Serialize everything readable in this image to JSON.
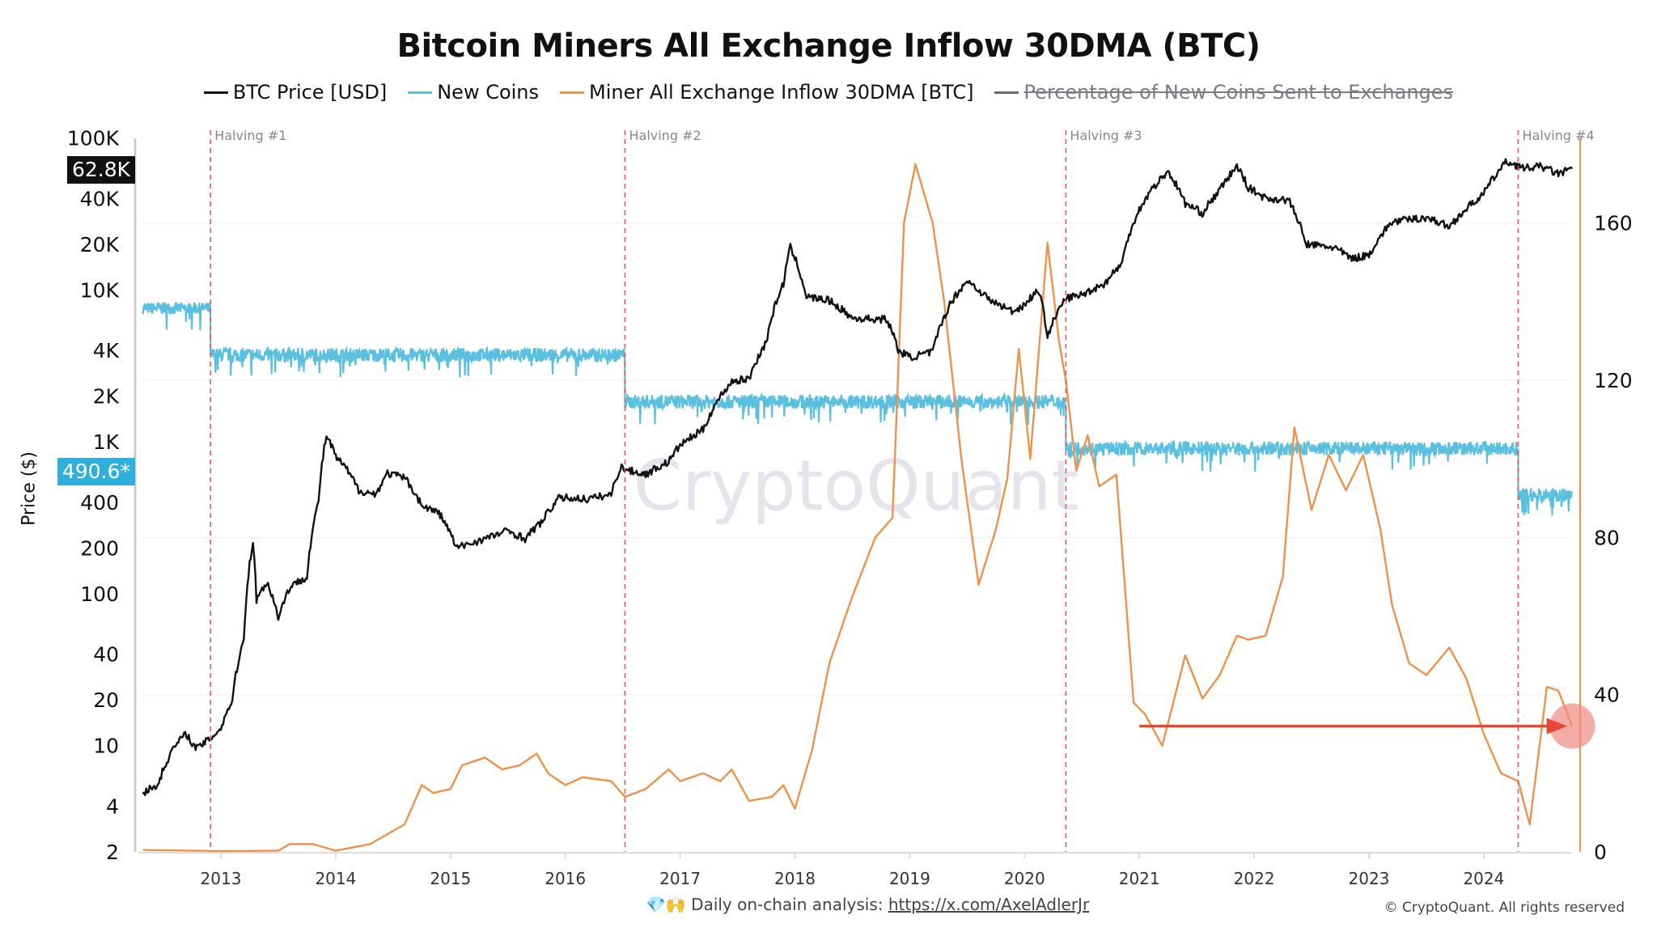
{
  "chart_data": {
    "type": "line",
    "title": "Bitcoin Miners All Exchange Inflow 30DMA (BTC)",
    "legend": [
      {
        "name": "BTC Price [USD]",
        "color": "#111111",
        "enabled": true
      },
      {
        "name": "New Coins",
        "color": "#5bc0e0",
        "enabled": true
      },
      {
        "name": "Miner All Exchange Inflow 30DMA [BTC]",
        "color": "#f0914a",
        "enabled": true
      },
      {
        "name": "Percentage of New Coins Sent to Exchanges",
        "color": "#6b6b75",
        "enabled": false
      }
    ],
    "legend_position": "top",
    "x_ticks": [
      "2013",
      "2014",
      "2015",
      "2016",
      "2017",
      "2018",
      "2019",
      "2020",
      "2021",
      "2022",
      "2023",
      "2024"
    ],
    "x_range": [
      2012.32,
      2024.77
    ],
    "left_axis": {
      "label": "Price ($)",
      "scale": "log",
      "range": [
        2,
        100000
      ],
      "ticks": [
        {
          "v": 100000,
          "t": "100K"
        },
        {
          "v": 40000,
          "t": "40K"
        },
        {
          "v": 20000,
          "t": "20K"
        },
        {
          "v": 10000,
          "t": "10K"
        },
        {
          "v": 4000,
          "t": "4K"
        },
        {
          "v": 2000,
          "t": "2K"
        },
        {
          "v": 1000,
          "t": "1K"
        },
        {
          "v": 400,
          "t": "400"
        },
        {
          "v": 200,
          "t": "200"
        },
        {
          "v": 100,
          "t": "100"
        },
        {
          "v": 40,
          "t": "40"
        },
        {
          "v": 20,
          "t": "20"
        },
        {
          "v": 10,
          "t": "10"
        },
        {
          "v": 4,
          "t": "4"
        },
        {
          "v": 2,
          "t": "2"
        }
      ],
      "current_price_badge": "62.8K",
      "new_coins_badge": "490.6*"
    },
    "right_axis": {
      "scale": "linear",
      "range": [
        0,
        180
      ],
      "ticks": [
        {
          "v": 0,
          "t": "0"
        },
        {
          "v": 40,
          "t": "40"
        },
        {
          "v": 80,
          "t": "80"
        },
        {
          "v": 120,
          "t": "120"
        },
        {
          "v": 160,
          "t": "160"
        }
      ]
    },
    "grid": true,
    "halvings": [
      {
        "label": "Halving #1",
        "date": 2012.91
      },
      {
        "label": "Halving #2",
        "date": 2016.52
      },
      {
        "label": "Halving #3",
        "date": 2020.36
      },
      {
        "label": "Halving #4",
        "date": 2024.3
      }
    ],
    "series": [
      {
        "name": "BTC Price [USD]",
        "axis": "left",
        "color": "#111111",
        "points": [
          [
            2012.32,
            4.9
          ],
          [
            2012.45,
            5.5
          ],
          [
            2012.6,
            10
          ],
          [
            2012.7,
            12
          ],
          [
            2012.78,
            9.5
          ],
          [
            2012.9,
            11
          ],
          [
            2013.0,
            13
          ],
          [
            2013.1,
            20
          ],
          [
            2013.2,
            50
          ],
          [
            2013.28,
            220
          ],
          [
            2013.31,
            90
          ],
          [
            2013.4,
            120
          ],
          [
            2013.5,
            70
          ],
          [
            2013.6,
            110
          ],
          [
            2013.75,
            130
          ],
          [
            2013.85,
            400
          ],
          [
            2013.92,
            1100
          ],
          [
            2014.0,
            800
          ],
          [
            2014.1,
            650
          ],
          [
            2014.2,
            480
          ],
          [
            2014.35,
            450
          ],
          [
            2014.45,
            620
          ],
          [
            2014.6,
            580
          ],
          [
            2014.75,
            380
          ],
          [
            2014.9,
            340
          ],
          [
            2015.0,
            250
          ],
          [
            2015.05,
            200
          ],
          [
            2015.3,
            230
          ],
          [
            2015.5,
            260
          ],
          [
            2015.65,
            230
          ],
          [
            2015.8,
            300
          ],
          [
            2015.95,
            430
          ],
          [
            2016.2,
            420
          ],
          [
            2016.4,
            450
          ],
          [
            2016.48,
            680
          ],
          [
            2016.55,
            650
          ],
          [
            2016.7,
            610
          ],
          [
            2016.9,
            740
          ],
          [
            2017.0,
            950
          ],
          [
            2017.2,
            1200
          ],
          [
            2017.45,
            2500
          ],
          [
            2017.6,
            2600
          ],
          [
            2017.75,
            4500
          ],
          [
            2017.9,
            11000
          ],
          [
            2017.96,
            19000
          ],
          [
            2018.1,
            9000
          ],
          [
            2018.3,
            8500
          ],
          [
            2018.5,
            6500
          ],
          [
            2018.8,
            6400
          ],
          [
            2018.9,
            4000
          ],
          [
            2019.0,
            3600
          ],
          [
            2019.2,
            3900
          ],
          [
            2019.35,
            8000
          ],
          [
            2019.5,
            11500
          ],
          [
            2019.7,
            8500
          ],
          [
            2019.9,
            7200
          ],
          [
            2020.0,
            8000
          ],
          [
            2020.12,
            10000
          ],
          [
            2020.2,
            5000
          ],
          [
            2020.36,
            8800
          ],
          [
            2020.5,
            9300
          ],
          [
            2020.7,
            11000
          ],
          [
            2020.85,
            15000
          ],
          [
            2020.95,
            28000
          ],
          [
            2021.1,
            45000
          ],
          [
            2021.25,
            60000
          ],
          [
            2021.4,
            37000
          ],
          [
            2021.55,
            32000
          ],
          [
            2021.7,
            45000
          ],
          [
            2021.85,
            65000
          ],
          [
            2021.95,
            47000
          ],
          [
            2022.1,
            40000
          ],
          [
            2022.3,
            39000
          ],
          [
            2022.45,
            20000
          ],
          [
            2022.7,
            19000
          ],
          [
            2022.85,
            16000
          ],
          [
            2023.0,
            17000
          ],
          [
            2023.2,
            28000
          ],
          [
            2023.5,
            30000
          ],
          [
            2023.7,
            26000
          ],
          [
            2023.9,
            37000
          ],
          [
            2024.0,
            43000
          ],
          [
            2024.2,
            70000
          ],
          [
            2024.35,
            63000
          ],
          [
            2024.5,
            65000
          ],
          [
            2024.65,
            58000
          ],
          [
            2024.77,
            62800
          ]
        ]
      },
      {
        "name": "New Coins",
        "axis": "hidden-log",
        "color": "#5bc0e0",
        "eras": [
          {
            "from": 2012.32,
            "to": 2012.91,
            "btc_per_day": 7200
          },
          {
            "from": 2012.91,
            "to": 2016.52,
            "btc_per_day": 3600
          },
          {
            "from": 2016.52,
            "to": 2020.36,
            "btc_per_day": 1800
          },
          {
            "from": 2020.36,
            "to": 2024.3,
            "btc_per_day": 900
          },
          {
            "from": 2024.3,
            "to": 2024.77,
            "btc_per_day": 450
          }
        ]
      },
      {
        "name": "Miner All Exchange Inflow 30DMA [BTC]",
        "axis": "right",
        "color": "#f0914a",
        "points": [
          [
            2012.32,
            0.5
          ],
          [
            2013.0,
            0.2
          ],
          [
            2013.5,
            0.3
          ],
          [
            2013.6,
            2
          ],
          [
            2013.8,
            2
          ],
          [
            2014.0,
            0.3
          ],
          [
            2014.3,
            2
          ],
          [
            2014.6,
            7
          ],
          [
            2014.75,
            17
          ],
          [
            2014.85,
            15
          ],
          [
            2015.0,
            16
          ],
          [
            2015.1,
            22
          ],
          [
            2015.3,
            24
          ],
          [
            2015.45,
            21
          ],
          [
            2015.6,
            22
          ],
          [
            2015.75,
            25
          ],
          [
            2015.85,
            20
          ],
          [
            2016.0,
            17
          ],
          [
            2016.15,
            19
          ],
          [
            2016.4,
            18
          ],
          [
            2016.52,
            14
          ],
          [
            2016.7,
            16
          ],
          [
            2016.9,
            21
          ],
          [
            2017.0,
            18
          ],
          [
            2017.2,
            20
          ],
          [
            2017.35,
            18
          ],
          [
            2017.45,
            21
          ],
          [
            2017.6,
            13
          ],
          [
            2017.8,
            14
          ],
          [
            2017.9,
            17
          ],
          [
            2018.0,
            11
          ],
          [
            2018.15,
            26
          ],
          [
            2018.3,
            48
          ],
          [
            2018.5,
            65
          ],
          [
            2018.7,
            80
          ],
          [
            2018.85,
            85
          ],
          [
            2018.95,
            160
          ],
          [
            2019.05,
            175
          ],
          [
            2019.2,
            160
          ],
          [
            2019.3,
            140
          ],
          [
            2019.45,
            100
          ],
          [
            2019.6,
            68
          ],
          [
            2019.75,
            82
          ],
          [
            2019.85,
            95
          ],
          [
            2019.95,
            128
          ],
          [
            2020.05,
            100
          ],
          [
            2020.2,
            155
          ],
          [
            2020.3,
            130
          ],
          [
            2020.36,
            120
          ],
          [
            2020.45,
            97
          ],
          [
            2020.55,
            106
          ],
          [
            2020.65,
            93
          ],
          [
            2020.8,
            96
          ],
          [
            2020.95,
            38
          ],
          [
            2021.05,
            35
          ],
          [
            2021.2,
            27
          ],
          [
            2021.4,
            50
          ],
          [
            2021.55,
            39
          ],
          [
            2021.7,
            45
          ],
          [
            2021.85,
            55
          ],
          [
            2021.95,
            54
          ],
          [
            2022.1,
            55
          ],
          [
            2022.25,
            70
          ],
          [
            2022.35,
            108
          ],
          [
            2022.5,
            87
          ],
          [
            2022.65,
            101
          ],
          [
            2022.8,
            92
          ],
          [
            2022.95,
            101
          ],
          [
            2023.1,
            82
          ],
          [
            2023.2,
            63
          ],
          [
            2023.35,
            48
          ],
          [
            2023.5,
            45
          ],
          [
            2023.7,
            52
          ],
          [
            2023.85,
            44
          ],
          [
            2024.0,
            30
          ],
          [
            2024.15,
            20
          ],
          [
            2024.3,
            18
          ],
          [
            2024.4,
            7
          ],
          [
            2024.55,
            42
          ],
          [
            2024.65,
            41
          ],
          [
            2024.77,
            32
          ]
        ]
      }
    ],
    "annotation": {
      "type": "arrow",
      "from_date": 2021.0,
      "to_date": 2024.73,
      "value": 32,
      "highlight_color": "#ef8a80",
      "arrow_color": "#e8483a"
    },
    "watermark": "CryptoQuant"
  },
  "footer": {
    "prefix": "💎🙌 Daily on-chain analysis: ",
    "link": "https://x.com/AxelAdlerJr",
    "copyright": "© CryptoQuant. All rights reserved"
  }
}
